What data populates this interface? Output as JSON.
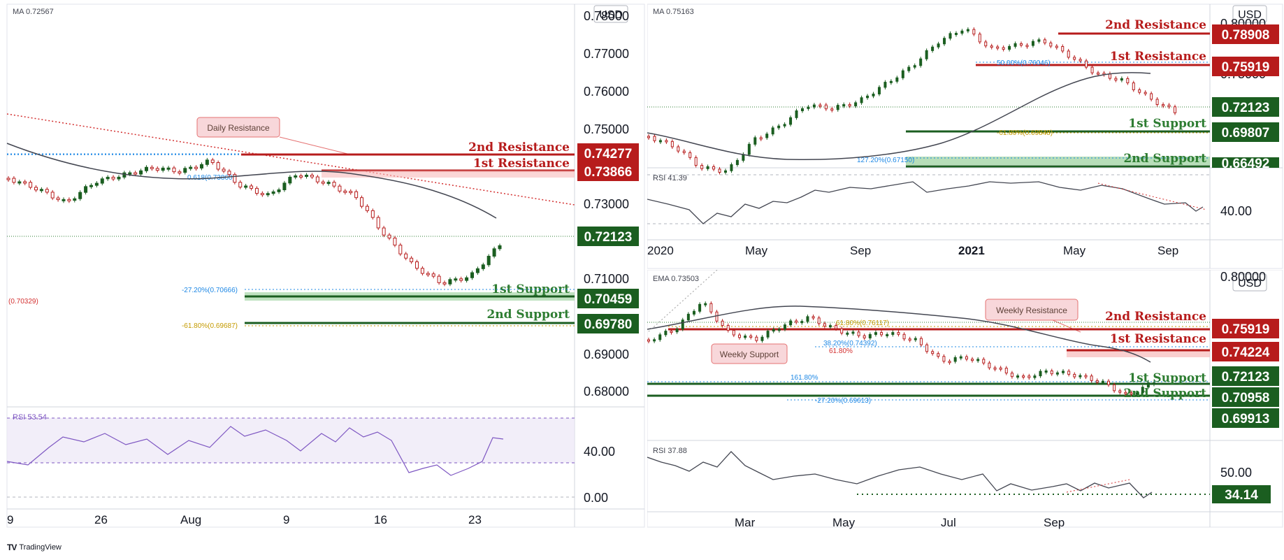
{
  "colors": {
    "resistance": "#b71c1c",
    "support": "#1b5e20",
    "candle_up": "#1b5e20",
    "candle_down": "#b71c1c",
    "ma_line": "#434651",
    "rsi_line": "#7e57c2",
    "rsi_line_alt": "#434651",
    "price_dotted": "#2e7d32",
    "fib_gold": "#c49a00",
    "fib_blue": "#1e88e5",
    "fib_red": "#d32f2f"
  },
  "footer": {
    "brand": "TradingView",
    "logo": "TV"
  },
  "charts": {
    "hourly": {
      "indicator": "MA  0.72567",
      "currency": "USD",
      "callout": "Daily Resistance",
      "rsi_label": "RSI  53.54",
      "price_ticks": [
        "0.78000",
        "0.77000",
        "0.76000",
        "0.75000",
        "0.73000",
        "0.71000",
        "0.69000",
        "0.68000"
      ],
      "rsi_ticks": [
        "40.00",
        "0.00"
      ],
      "x_ticks": [
        "9",
        "26",
        "Aug",
        "9",
        "16",
        "23"
      ],
      "levels": {
        "r2": {
          "label": "2nd Resistance",
          "price": "0.74277"
        },
        "r1": {
          "label": "1st Resistance",
          "price": "0.73866"
        },
        "current": {
          "price": "0.72123"
        },
        "s1": {
          "label": "1st Support",
          "price": "0.70459"
        },
        "s2": {
          "label": "2nd Support",
          "price": "0.69780"
        }
      },
      "fib": {
        "f1": "-27.20%(0.70666)",
        "f2": "-61.80%(0.69687)",
        "f3": "(0.70329)",
        "f4": "0.618(0.73860)"
      }
    },
    "daily": {
      "indicator": "MA  0.75163",
      "currency": "USD",
      "rsi_label": "RSI  41.39",
      "price_ticks": [
        "0.80000",
        "0.75000"
      ],
      "rsi_ticks": [
        "40.00"
      ],
      "x_ticks": [
        "2020",
        "May",
        "Sep",
        "2021",
        "May",
        "Sep"
      ],
      "levels": {
        "r2": {
          "label": "2nd Resistance",
          "price": "0.78908"
        },
        "r1": {
          "label": "1st Resistance",
          "price": "0.75919"
        },
        "current": {
          "price": "0.72123"
        },
        "s1": {
          "label": "1st Support",
          "price": "0.69807"
        },
        "s2": {
          "label": "2nd Support",
          "price": "0.66492"
        }
      },
      "fib": {
        "f1": "50.00%(0.76046)",
        "f2": "-61.80%(0.69848)",
        "f3": "127.20%(0.67150)"
      }
    },
    "weekly": {
      "indicator": "EMA  0.73503",
      "currency": "USD",
      "callout_top": "Weekly Resistance",
      "callout_bottom": "Weekly Support",
      "rsi_label": "RSI  37.88",
      "price_ticks": [
        "0.80000"
      ],
      "rsi_ticks": [
        "50.00"
      ],
      "rsi_value": "34.14",
      "x_ticks": [
        "Mar",
        "May",
        "Jul",
        "Sep"
      ],
      "levels": {
        "r2": {
          "label": "2nd Resistance",
          "price": "0.75919"
        },
        "r1": {
          "label": "1st Resistance",
          "price": "0.74224"
        },
        "current": {
          "price": "0.72123"
        },
        "s1": {
          "label": "1st Support",
          "price": "0.70958"
        },
        "s2": {
          "label": "2nd Support",
          "price": "0.69913"
        }
      },
      "fib": {
        "f1": "61.80%(0.76117)",
        "f2": "38.20%(0.74392)",
        "f3": "61.80%",
        "f4": "161.80%",
        "f5": "-27.20%(0.69613)"
      }
    }
  },
  "chart_data": [
    {
      "type": "candlestick",
      "title": "",
      "timeframe_ticks": [
        "9",
        "26",
        "Aug",
        "9",
        "16",
        "23"
      ],
      "ylim": [
        0.675,
        0.785
      ],
      "series": [
        {
          "name": "MA",
          "last": 0.72567
        }
      ],
      "levels": {
        "2nd Resistance": 0.74277,
        "1st Resistance": 0.73866,
        "current": 0.72123,
        "1st Support": 0.70459,
        "2nd Support": 0.6978
      },
      "rsi": {
        "last": 53.54,
        "ticks": [
          40,
          0
        ]
      }
    },
    {
      "type": "candlestick",
      "title": "",
      "timeframe_ticks": [
        "2020",
        "May",
        "Sep",
        "2021",
        "May",
        "Sep"
      ],
      "series": [
        {
          "name": "MA",
          "last": 0.75163
        }
      ],
      "levels": {
        "2nd Resistance": 0.78908,
        "1st Resistance": 0.75919,
        "current": 0.72123,
        "1st Support": 0.69807,
        "2nd Support": 0.66492
      },
      "rsi": {
        "last": 41.39,
        "ticks": [
          40
        ]
      }
    },
    {
      "type": "candlestick",
      "title": "",
      "timeframe_ticks": [
        "Mar",
        "May",
        "Jul",
        "Sep"
      ],
      "series": [
        {
          "name": "EMA",
          "last": 0.73503
        }
      ],
      "levels": {
        "2nd Resistance": 0.75919,
        "1st Resistance": 0.74224,
        "current": 0.72123,
        "1st Support": 0.70958,
        "2nd Support": 0.69913
      },
      "rsi": {
        "last": 37.88,
        "level": 34.14,
        "ticks": [
          50
        ]
      }
    }
  ]
}
